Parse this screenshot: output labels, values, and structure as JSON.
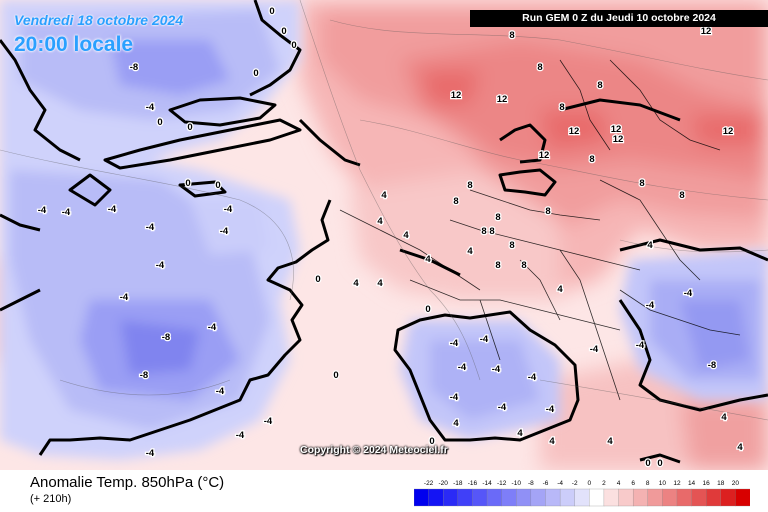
{
  "header": {
    "date": "Vendredi 18 octobre 2024",
    "hour": "20:00 locale",
    "run": "Run GEM 0 Z du Jeudi 10 octobre 2024"
  },
  "footer": {
    "title": "Anomalie Temp. 850hPa (°C)",
    "subtitle": "(+ 210h)",
    "copyright": "Copyright © 2024 Meteociel.fr"
  },
  "legend": {
    "labels": [
      "-22",
      "-20",
      "-18",
      "-16",
      "-14",
      "-12",
      "-10",
      "-8",
      "-6",
      "-4",
      "-2",
      "0",
      "2",
      "4",
      "6",
      "8",
      "10",
      "12",
      "14",
      "16",
      "18",
      "20"
    ],
    "colors": [
      "#0000ee",
      "#1414f4",
      "#2a2af6",
      "#4040f8",
      "#5656f8",
      "#6a6af8",
      "#7e7ef8",
      "#9090f6",
      "#a4a4f6",
      "#b8b8f8",
      "#cccdfa",
      "#e2e2fb",
      "#ffffff",
      "#fbe0e0",
      "#f8caca",
      "#f4b2b2",
      "#f09a9a",
      "#ec8282",
      "#e86a6a",
      "#e45454",
      "#e03a3a",
      "#dc2020",
      "#d80000"
    ]
  },
  "contour_labels": [
    {
      "t": "0"
    },
    {
      "t": "0"
    },
    {
      "t": "0"
    },
    {
      "t": "0"
    },
    {
      "t": "0"
    },
    {
      "t": "0"
    },
    {
      "t": "0"
    },
    {
      "t": "0"
    },
    {
      "t": "0"
    },
    {
      "t": "0"
    },
    {
      "t": "-8"
    },
    {
      "t": "-4"
    },
    {
      "t": "-4"
    },
    {
      "t": "-4"
    },
    {
      "t": "-4"
    },
    {
      "t": "-4"
    },
    {
      "t": "-4"
    },
    {
      "t": "-4"
    },
    {
      "t": "-4"
    },
    {
      "t": "-4"
    },
    {
      "t": "-4"
    },
    {
      "t": "-4"
    },
    {
      "t": "-4"
    },
    {
      "t": "-4"
    },
    {
      "t": "-4"
    },
    {
      "t": "-8"
    },
    {
      "t": "-8"
    },
    {
      "t": "-4"
    },
    {
      "t": "-4"
    },
    {
      "t": "-4"
    },
    {
      "t": "-4"
    },
    {
      "t": "-4"
    },
    {
      "t": "-4"
    },
    {
      "t": "-4"
    },
    {
      "t": "-4"
    },
    {
      "t": "-4"
    },
    {
      "t": "-4"
    },
    {
      "t": "-4"
    },
    {
      "t": "-8"
    },
    {
      "t": "-4"
    },
    {
      "t": "12"
    },
    {
      "t": "12"
    },
    {
      "t": "12"
    },
    {
      "t": "12"
    },
    {
      "t": "12"
    },
    {
      "t": "12"
    },
    {
      "t": "12"
    },
    {
      "t": "12"
    },
    {
      "t": "8"
    },
    {
      "t": "8"
    },
    {
      "t": "8"
    },
    {
      "t": "8"
    },
    {
      "t": "8"
    },
    {
      "t": "8"
    },
    {
      "t": "8"
    },
    {
      "t": "8"
    },
    {
      "t": "8"
    },
    {
      "t": "8"
    },
    {
      "t": "8"
    },
    {
      "t": "8"
    },
    {
      "t": "8"
    },
    {
      "t": "8"
    },
    {
      "t": "8"
    },
    {
      "t": "8"
    },
    {
      "t": "4"
    },
    {
      "t": "4"
    },
    {
      "t": "4"
    },
    {
      "t": "4"
    },
    {
      "t": "4"
    },
    {
      "t": "4"
    },
    {
      "t": "4"
    },
    {
      "t": "4"
    },
    {
      "t": "4"
    },
    {
      "t": "4"
    },
    {
      "t": "4"
    },
    {
      "t": "4"
    },
    {
      "t": "4"
    },
    {
      "t": "4"
    },
    {
      "t": "4"
    },
    {
      "t": "0"
    },
    {
      "t": "0"
    },
    {
      "t": "0"
    },
    {
      "t": "0"
    }
  ]
}
